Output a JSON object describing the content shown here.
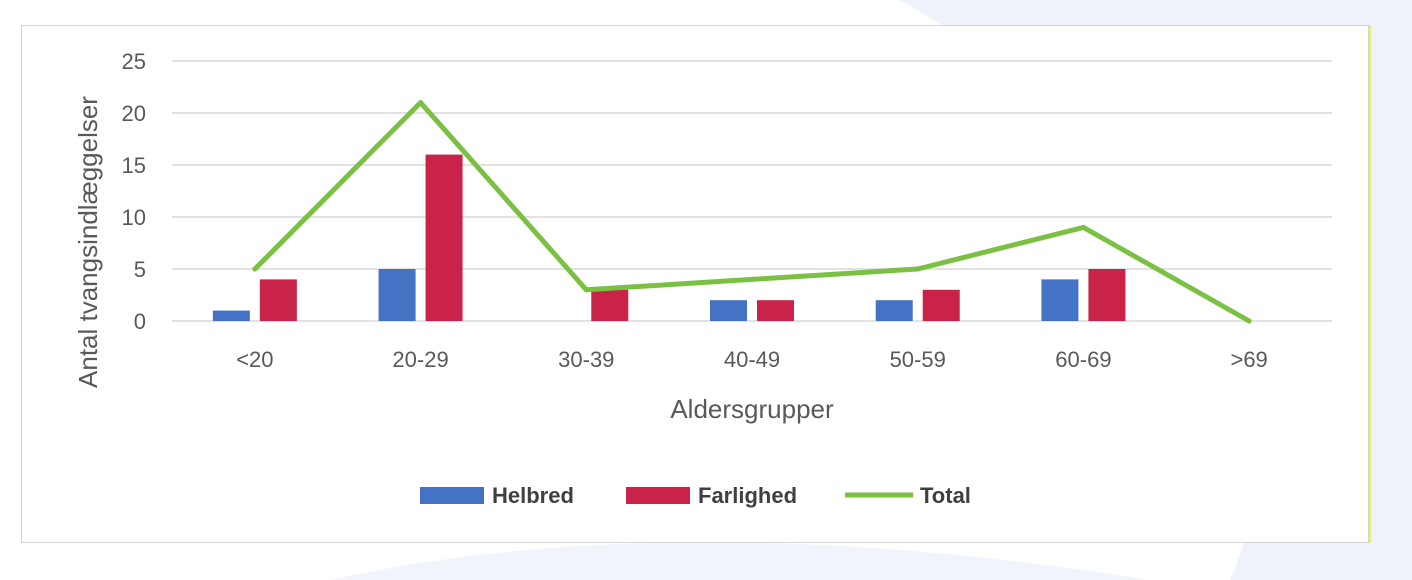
{
  "chart_data": {
    "type": "bar",
    "categories": [
      "<20",
      "20-29",
      "30-39",
      "40-49",
      "50-59",
      "60-69",
      ">69"
    ],
    "series": [
      {
        "name": "Helbred",
        "kind": "bar",
        "color": "#4472c4",
        "values": [
          1,
          5,
          0,
          2,
          2,
          4,
          0
        ]
      },
      {
        "name": "Farlighed",
        "kind": "bar",
        "color": "#c9234a",
        "values": [
          4,
          16,
          3,
          2,
          3,
          5,
          0
        ]
      },
      {
        "name": "Total",
        "kind": "line",
        "color": "#7ac143",
        "values": [
          5,
          21,
          3,
          4,
          5,
          9,
          0
        ]
      }
    ],
    "xlabel": "Aldersgrupper",
    "ylabel": "Antal tvangsindlæggelser",
    "ylim": [
      0,
      25
    ],
    "yticks": [
      0,
      5,
      10,
      15,
      20,
      25
    ],
    "grid": true,
    "legend_position": "bottom"
  }
}
